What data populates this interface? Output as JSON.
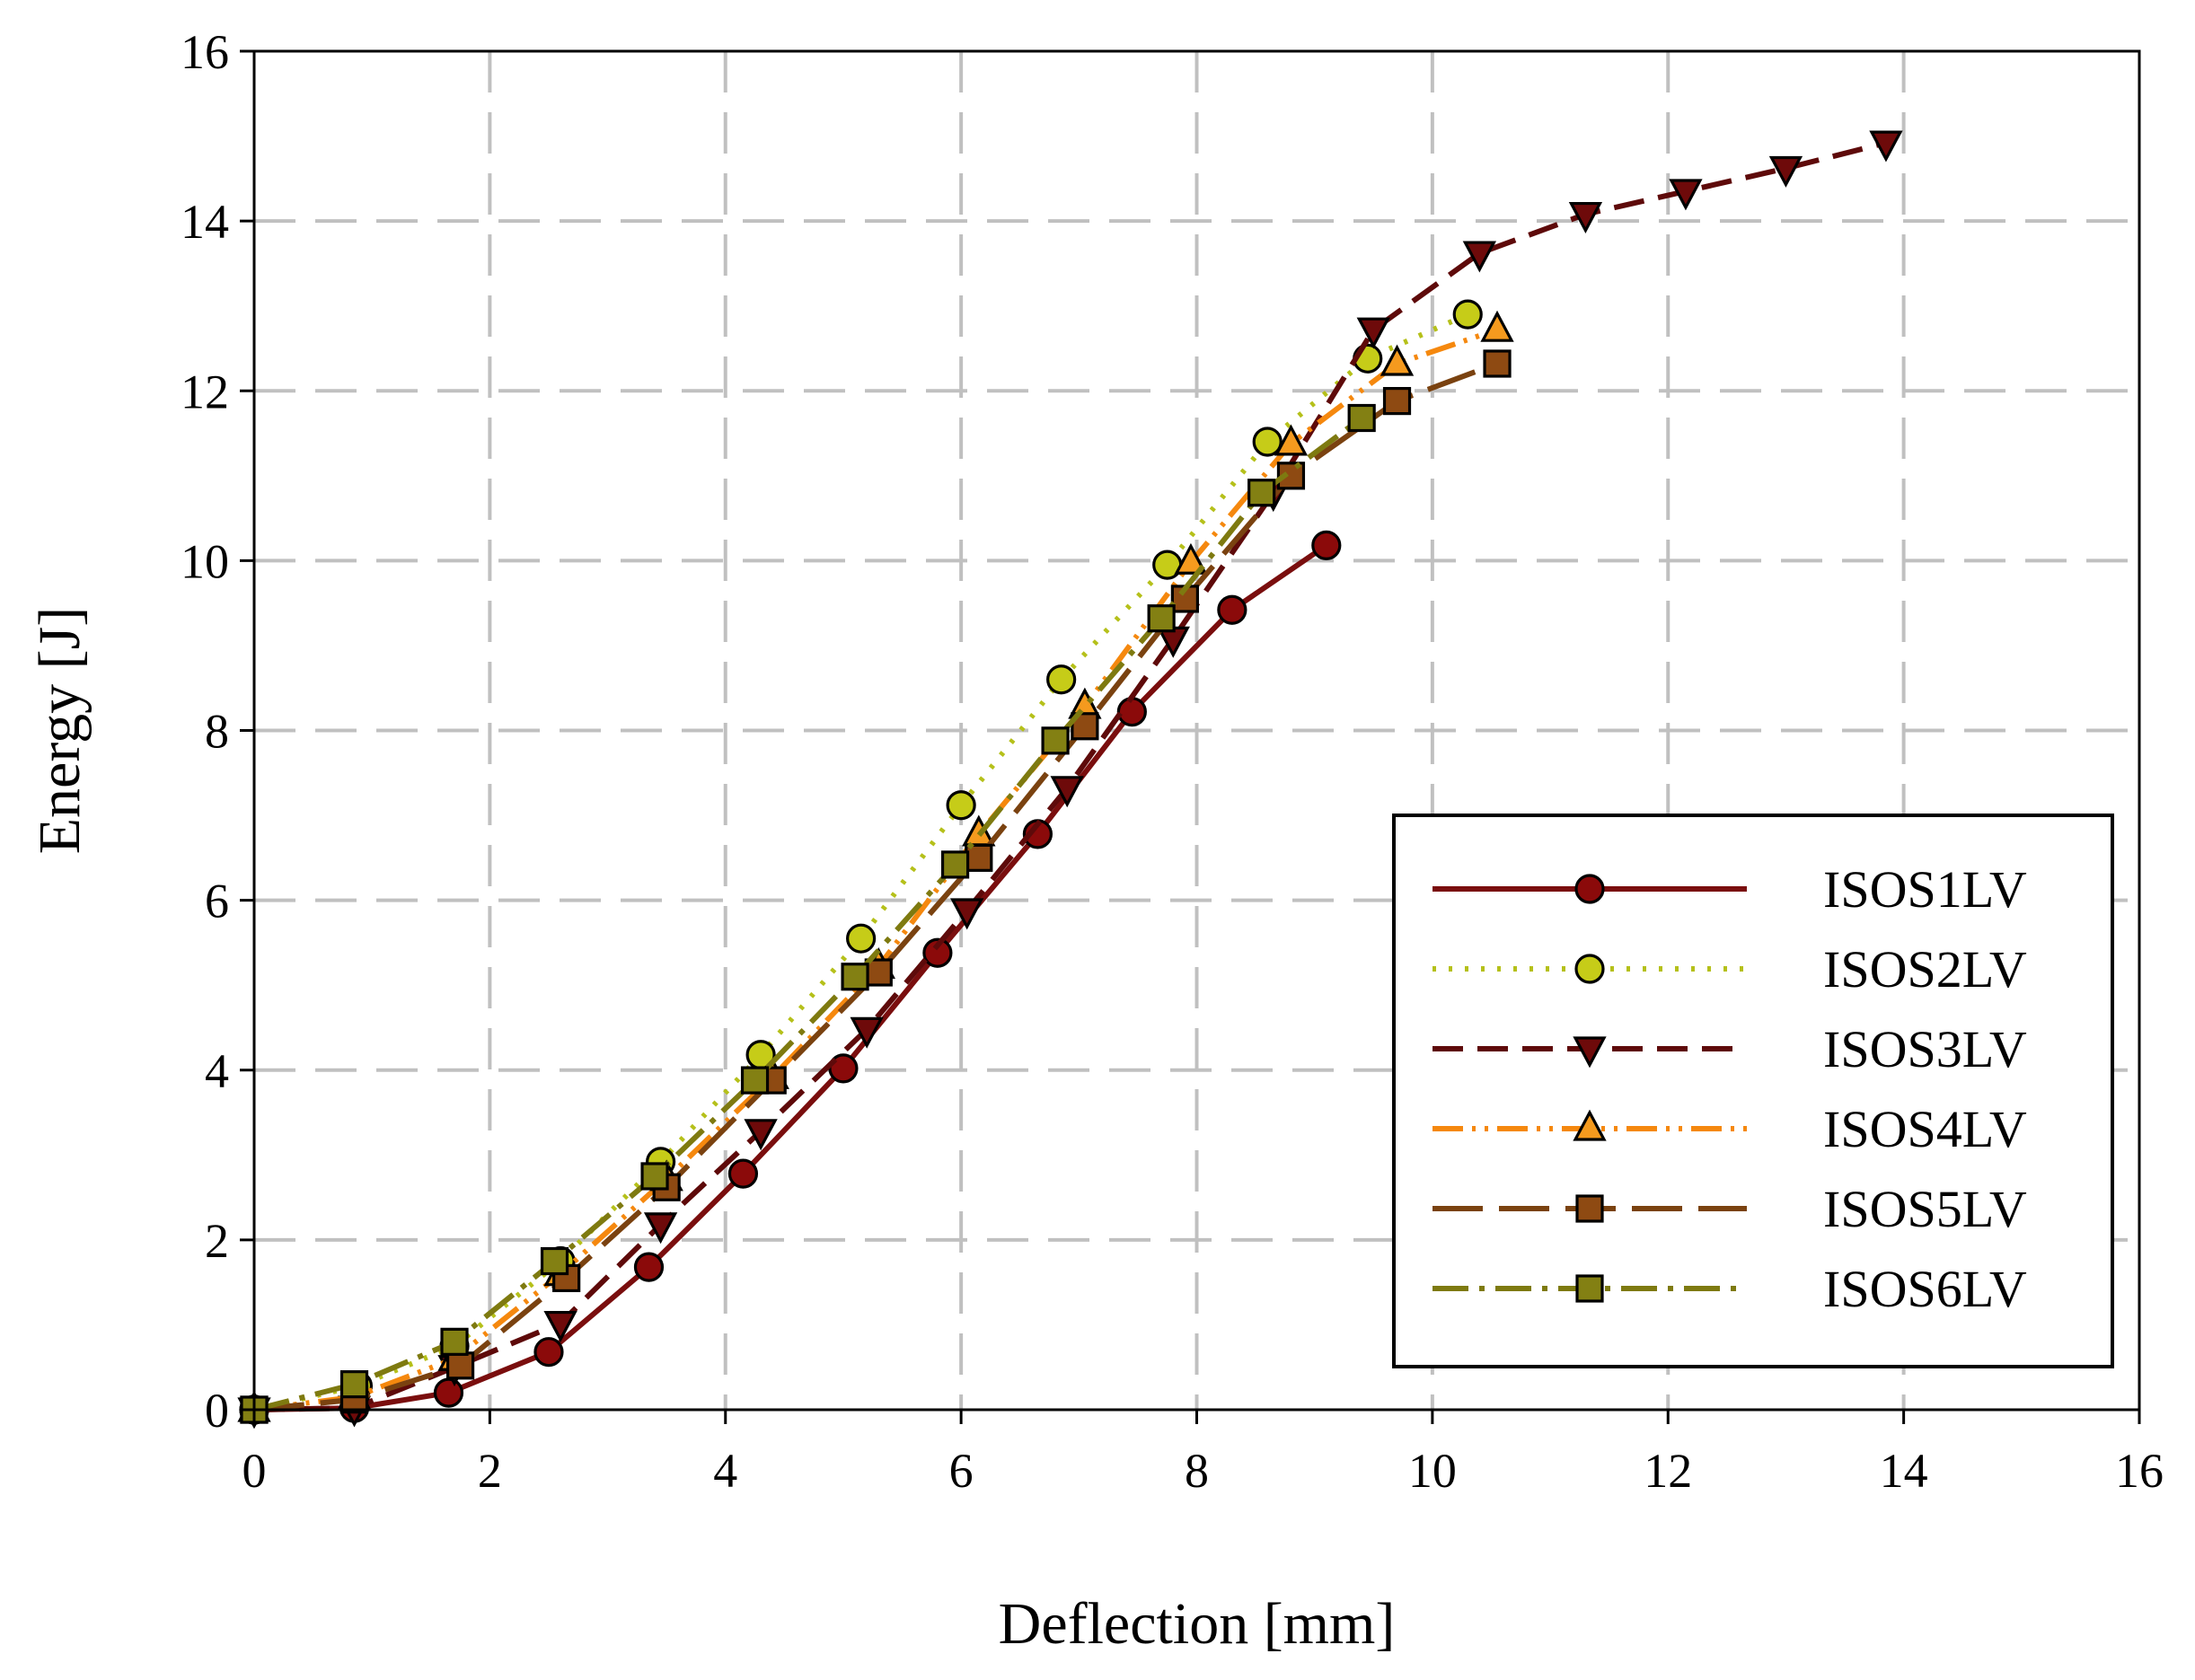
{
  "chart_data": {
    "type": "line",
    "title": "",
    "xlabel": "Deflection [mm]",
    "ylabel": "Energy [J]",
    "xlim": [
      0,
      16
    ],
    "ylim": [
      0,
      16
    ],
    "xticks": [
      0,
      2,
      4,
      6,
      8,
      10,
      12,
      14,
      16
    ],
    "yticks": [
      0,
      2,
      4,
      6,
      8,
      10,
      12,
      14,
      16
    ],
    "grid": true,
    "legend_position": "bottom-right",
    "series": [
      {
        "name": "ISOS1LV",
        "line_color": "#7A0E0E",
        "marker": "circle",
        "marker_fill": "#8B0A0A",
        "dash": "",
        "x": [
          0,
          0.85,
          1.65,
          2.5,
          3.35,
          4.15,
          5.0,
          5.8,
          6.65,
          7.45,
          8.3,
          9.1
        ],
        "y": [
          0,
          0.02,
          0.2,
          0.68,
          1.68,
          2.78,
          4.02,
          5.38,
          6.78,
          8.22,
          9.42,
          10.18
        ]
      },
      {
        "name": "ISOS2LV",
        "line_color": "#B5C01A",
        "marker": "circle",
        "marker_fill": "#C6CC18",
        "dash": "4,14",
        "x": [
          0,
          0.88,
          1.7,
          2.6,
          3.45,
          4.3,
          5.15,
          6.0,
          6.85,
          7.75,
          8.6,
          9.45,
          10.3
        ],
        "y": [
          0,
          0.28,
          0.75,
          1.75,
          2.92,
          4.18,
          5.55,
          7.12,
          8.6,
          9.95,
          11.4,
          12.38,
          12.9
        ]
      },
      {
        "name": "ISOS3LV",
        "line_color": "#5E0A0A",
        "marker": "triangle-down",
        "marker_fill": "#6E0A0A",
        "dash": "34,16",
        "x": [
          0,
          0.85,
          1.7,
          2.6,
          3.45,
          4.3,
          5.2,
          6.05,
          6.9,
          7.8,
          8.65,
          9.5,
          10.4,
          11.3,
          12.15,
          13.0,
          13.85
        ],
        "y": [
          0,
          0.02,
          0.5,
          1.02,
          2.18,
          3.28,
          4.48,
          5.88,
          7.32,
          9.08,
          10.8,
          12.72,
          13.62,
          14.08,
          14.35,
          14.62,
          14.92
        ]
      },
      {
        "name": "ISOS4LV",
        "line_color": "#F5880E",
        "marker": "triangle-up",
        "marker_fill": "#F59A1E",
        "dash": "34,10,4,10,4,10",
        "x": [
          0,
          0.85,
          1.7,
          2.6,
          3.5,
          4.4,
          5.3,
          6.15,
          7.05,
          7.95,
          8.8,
          9.7,
          10.55
        ],
        "y": [
          0,
          0.15,
          0.6,
          1.6,
          2.72,
          3.92,
          5.22,
          6.78,
          8.28,
          9.98,
          11.38,
          12.32,
          12.72
        ]
      },
      {
        "name": "ISOS5LV",
        "line_color": "#7A4210",
        "marker": "square",
        "marker_fill": "#8E4A12",
        "dash": "56,18",
        "x": [
          0,
          0.85,
          1.75,
          2.65,
          3.5,
          4.4,
          5.3,
          6.15,
          7.05,
          7.9,
          8.8,
          9.7,
          10.55
        ],
        "y": [
          0,
          0.12,
          0.52,
          1.55,
          2.62,
          3.88,
          5.15,
          6.5,
          8.05,
          9.55,
          11.0,
          11.88,
          12.32
        ]
      },
      {
        "name": "ISOS6LV",
        "line_color": "#7E7A10",
        "marker": "square",
        "marker_fill": "#838013",
        "dash": "40,12,6,12",
        "x": [
          0,
          0.85,
          1.7,
          2.55,
          3.4,
          4.25,
          5.1,
          5.95,
          6.8,
          7.7,
          8.55,
          9.4
        ],
        "y": [
          0,
          0.3,
          0.8,
          1.75,
          2.75,
          3.88,
          5.1,
          6.42,
          7.88,
          9.32,
          10.8,
          11.68
        ]
      }
    ]
  }
}
